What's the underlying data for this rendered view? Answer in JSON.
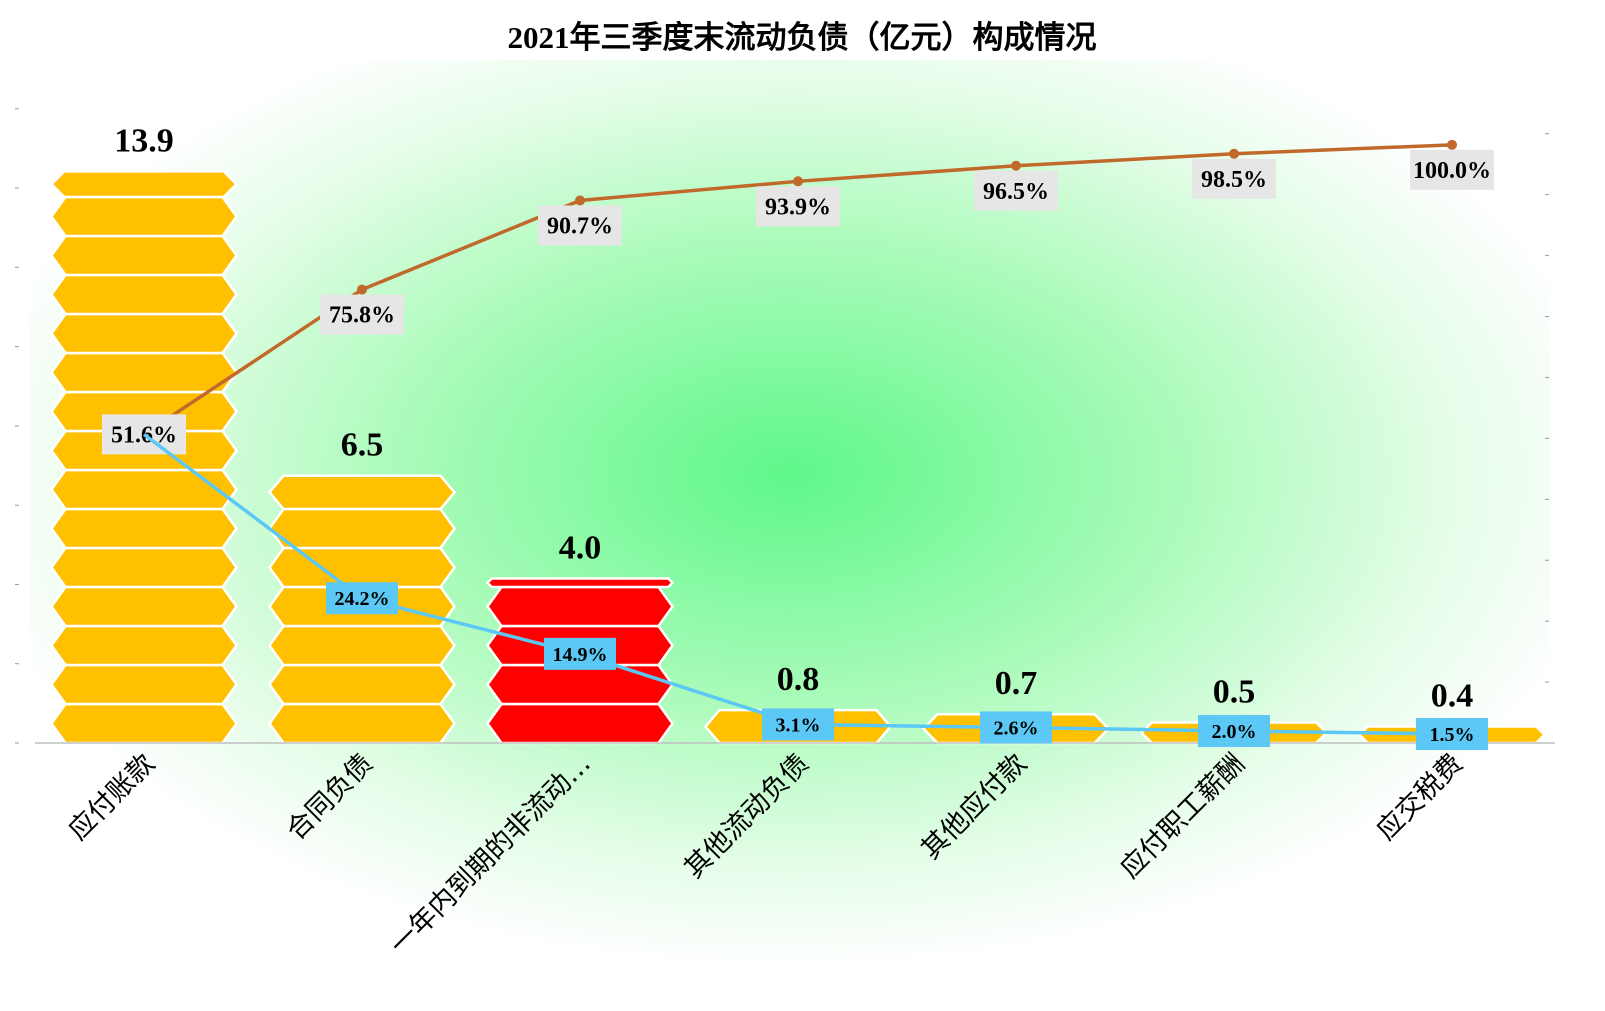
{
  "chart_data": {
    "type": "bar",
    "title": "2021年三季度末流动负债（亿元）构成情况",
    "categories": [
      "应付账款",
      "合同负债",
      "一年内到期的非流动…",
      "其他流动负债",
      "其他应付款",
      "应付职工薪酬",
      "应交税费"
    ],
    "series": [
      {
        "name": "金额",
        "type": "bar",
        "values": [
          13.9,
          6.5,
          4.0,
          0.8,
          0.7,
          0.5,
          0.4
        ],
        "value_labels": [
          "13.9",
          "6.5",
          "4.0",
          "0.8",
          "0.7",
          "0.5",
          "0.4"
        ]
      },
      {
        "name": "占比",
        "type": "line",
        "values": [
          51.6,
          24.2,
          14.9,
          3.1,
          2.6,
          2.0,
          1.5
        ],
        "labels": [
          "51.6%",
          "24.2%",
          "14.9%",
          "3.1%",
          "2.6%",
          "2.0%",
          "1.5%"
        ]
      },
      {
        "name": "累计占比",
        "type": "line",
        "values": [
          51.6,
          75.8,
          90.7,
          93.9,
          96.5,
          98.5,
          100.0
        ],
        "labels": [
          "51.6%",
          "75.8%",
          "90.7%",
          "93.9%",
          "96.5%",
          "98.5%",
          "100.0%"
        ]
      }
    ],
    "ylim": [
      0,
      16
    ],
    "y2lim": [
      0,
      110
    ],
    "highlight_index": 2,
    "colors": {
      "bar": "#FFC000",
      "bar_highlight": "#FF0000",
      "pct_line": "#5BC8F5",
      "pct_label_bg": "#5BC8F5",
      "cum_line": "#C0692B",
      "cum_label_bg": "#E6E6E6",
      "background_glow": "#5EF78A"
    }
  }
}
